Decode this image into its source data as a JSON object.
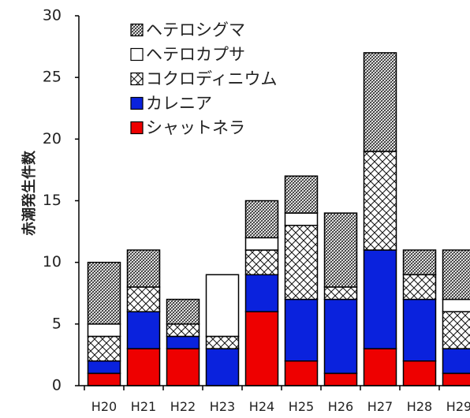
{
  "chart_data": {
    "type": "bar",
    "stacked": true,
    "ylabel": "赤潮発生件数",
    "xlabel": "",
    "ylim": [
      0,
      30
    ],
    "yticks": [
      0,
      5,
      10,
      15,
      20,
      25,
      30
    ],
    "categories": [
      "H20",
      "H21",
      "H22",
      "H23",
      "H24",
      "H25",
      "H26",
      "H27",
      "H28",
      "H29"
    ],
    "series": [
      {
        "name": "シャットネラ",
        "pattern": "solid",
        "color": "#ee0000",
        "values": [
          1,
          3,
          3,
          0,
          6,
          2,
          1,
          3,
          2,
          1
        ]
      },
      {
        "name": "カレニア",
        "pattern": "solid",
        "color": "#0a22dd",
        "values": [
          1,
          3,
          1,
          3,
          3,
          5,
          6,
          8,
          5,
          2
        ]
      },
      {
        "name": "コクロディニウム",
        "pattern": "crosshatch",
        "color": "#000000",
        "values": [
          2,
          2,
          1,
          1,
          2,
          6,
          1,
          8,
          2,
          3
        ]
      },
      {
        "name": "ヘテロカプサ",
        "pattern": "none",
        "color": "#ffffff",
        "values": [
          1,
          0,
          0,
          5,
          1,
          1,
          0,
          0,
          0,
          1
        ]
      },
      {
        "name": "ヘテロシグマ",
        "pattern": "dense-hatch",
        "color": "#000000",
        "values": [
          5,
          3,
          2,
          0,
          3,
          3,
          6,
          8,
          2,
          4
        ]
      }
    ],
    "legend_position": "top-left",
    "legend_order": [
      "ヘテロシグマ",
      "ヘテロカプサ",
      "コクロディニウム",
      "カレニア",
      "シャットネラ"
    ],
    "grid": false
  }
}
